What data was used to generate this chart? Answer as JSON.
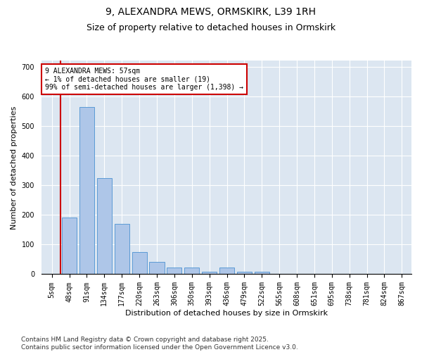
{
  "title1": "9, ALEXANDRA MEWS, ORMSKIRK, L39 1RH",
  "title2": "Size of property relative to detached houses in Ormskirk",
  "xlabel": "Distribution of detached houses by size in Ormskirk",
  "ylabel": "Number of detached properties",
  "bar_labels": [
    "5sqm",
    "48sqm",
    "91sqm",
    "134sqm",
    "177sqm",
    "220sqm",
    "263sqm",
    "306sqm",
    "350sqm",
    "393sqm",
    "436sqm",
    "479sqm",
    "522sqm",
    "565sqm",
    "608sqm",
    "651sqm",
    "695sqm",
    "738sqm",
    "781sqm",
    "824sqm",
    "867sqm"
  ],
  "bar_values": [
    2,
    192,
    565,
    325,
    170,
    75,
    42,
    22,
    22,
    8,
    22,
    8,
    8,
    0,
    0,
    2,
    0,
    0,
    0,
    0,
    0
  ],
  "bar_color": "#aec6e8",
  "bar_edge_color": "#5b9bd5",
  "background_color": "#dce6f1",
  "annotation_text": "9 ALEXANDRA MEWS: 57sqm\n← 1% of detached houses are smaller (19)\n99% of semi-detached houses are larger (1,398) →",
  "annotation_box_color": "#ffffff",
  "annotation_border_color": "#cc0000",
  "vline_color": "#cc0000",
  "ylim": [
    0,
    720
  ],
  "yticks": [
    0,
    100,
    200,
    300,
    400,
    500,
    600,
    700
  ],
  "footer": "Contains HM Land Registry data © Crown copyright and database right 2025.\nContains public sector information licensed under the Open Government Licence v3.0.",
  "title_fontsize": 10,
  "subtitle_fontsize": 9,
  "axis_label_fontsize": 8,
  "tick_fontsize": 7,
  "footer_fontsize": 6.5
}
